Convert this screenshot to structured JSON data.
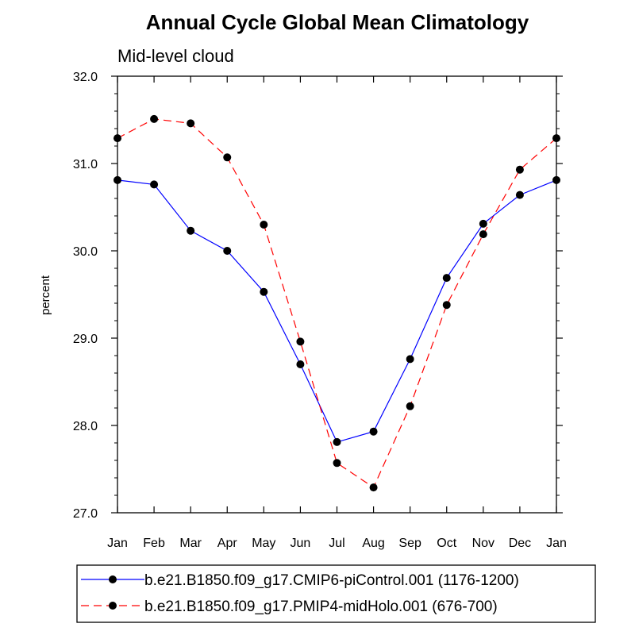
{
  "chart_data": {
    "type": "line",
    "title": "Annual Cycle Global Mean Climatology",
    "subtitle": "Mid-level cloud",
    "ylabel": "percent",
    "xlabel": "",
    "categories": [
      "Jan",
      "Feb",
      "Mar",
      "Apr",
      "May",
      "Jun",
      "Jul",
      "Aug",
      "Sep",
      "Oct",
      "Nov",
      "Dec",
      "Jan"
    ],
    "ylim": [
      27.0,
      32.0
    ],
    "yticks": [
      "27.0",
      "28.0",
      "29.0",
      "30.0",
      "31.0",
      "32.0"
    ],
    "grid": false,
    "legend_position": "bottom",
    "series": [
      {
        "name": "b.e21.B1850.f09_g17.CMIP6-piControl.001 (1176-1200)",
        "color": "#0000ff",
        "dash": "solid",
        "values": [
          30.81,
          30.76,
          30.23,
          30.0,
          29.53,
          28.7,
          27.81,
          27.93,
          28.76,
          29.69,
          30.31,
          30.64,
          30.81
        ]
      },
      {
        "name": "b.e21.B1850.f09_g17.PMIP4-midHolo.001 (676-700)",
        "color": "#ff0000",
        "dash": "dashed",
        "values": [
          31.29,
          31.51,
          31.46,
          31.07,
          30.3,
          28.96,
          27.57,
          27.29,
          28.22,
          29.38,
          30.19,
          30.93,
          31.29
        ]
      }
    ]
  }
}
